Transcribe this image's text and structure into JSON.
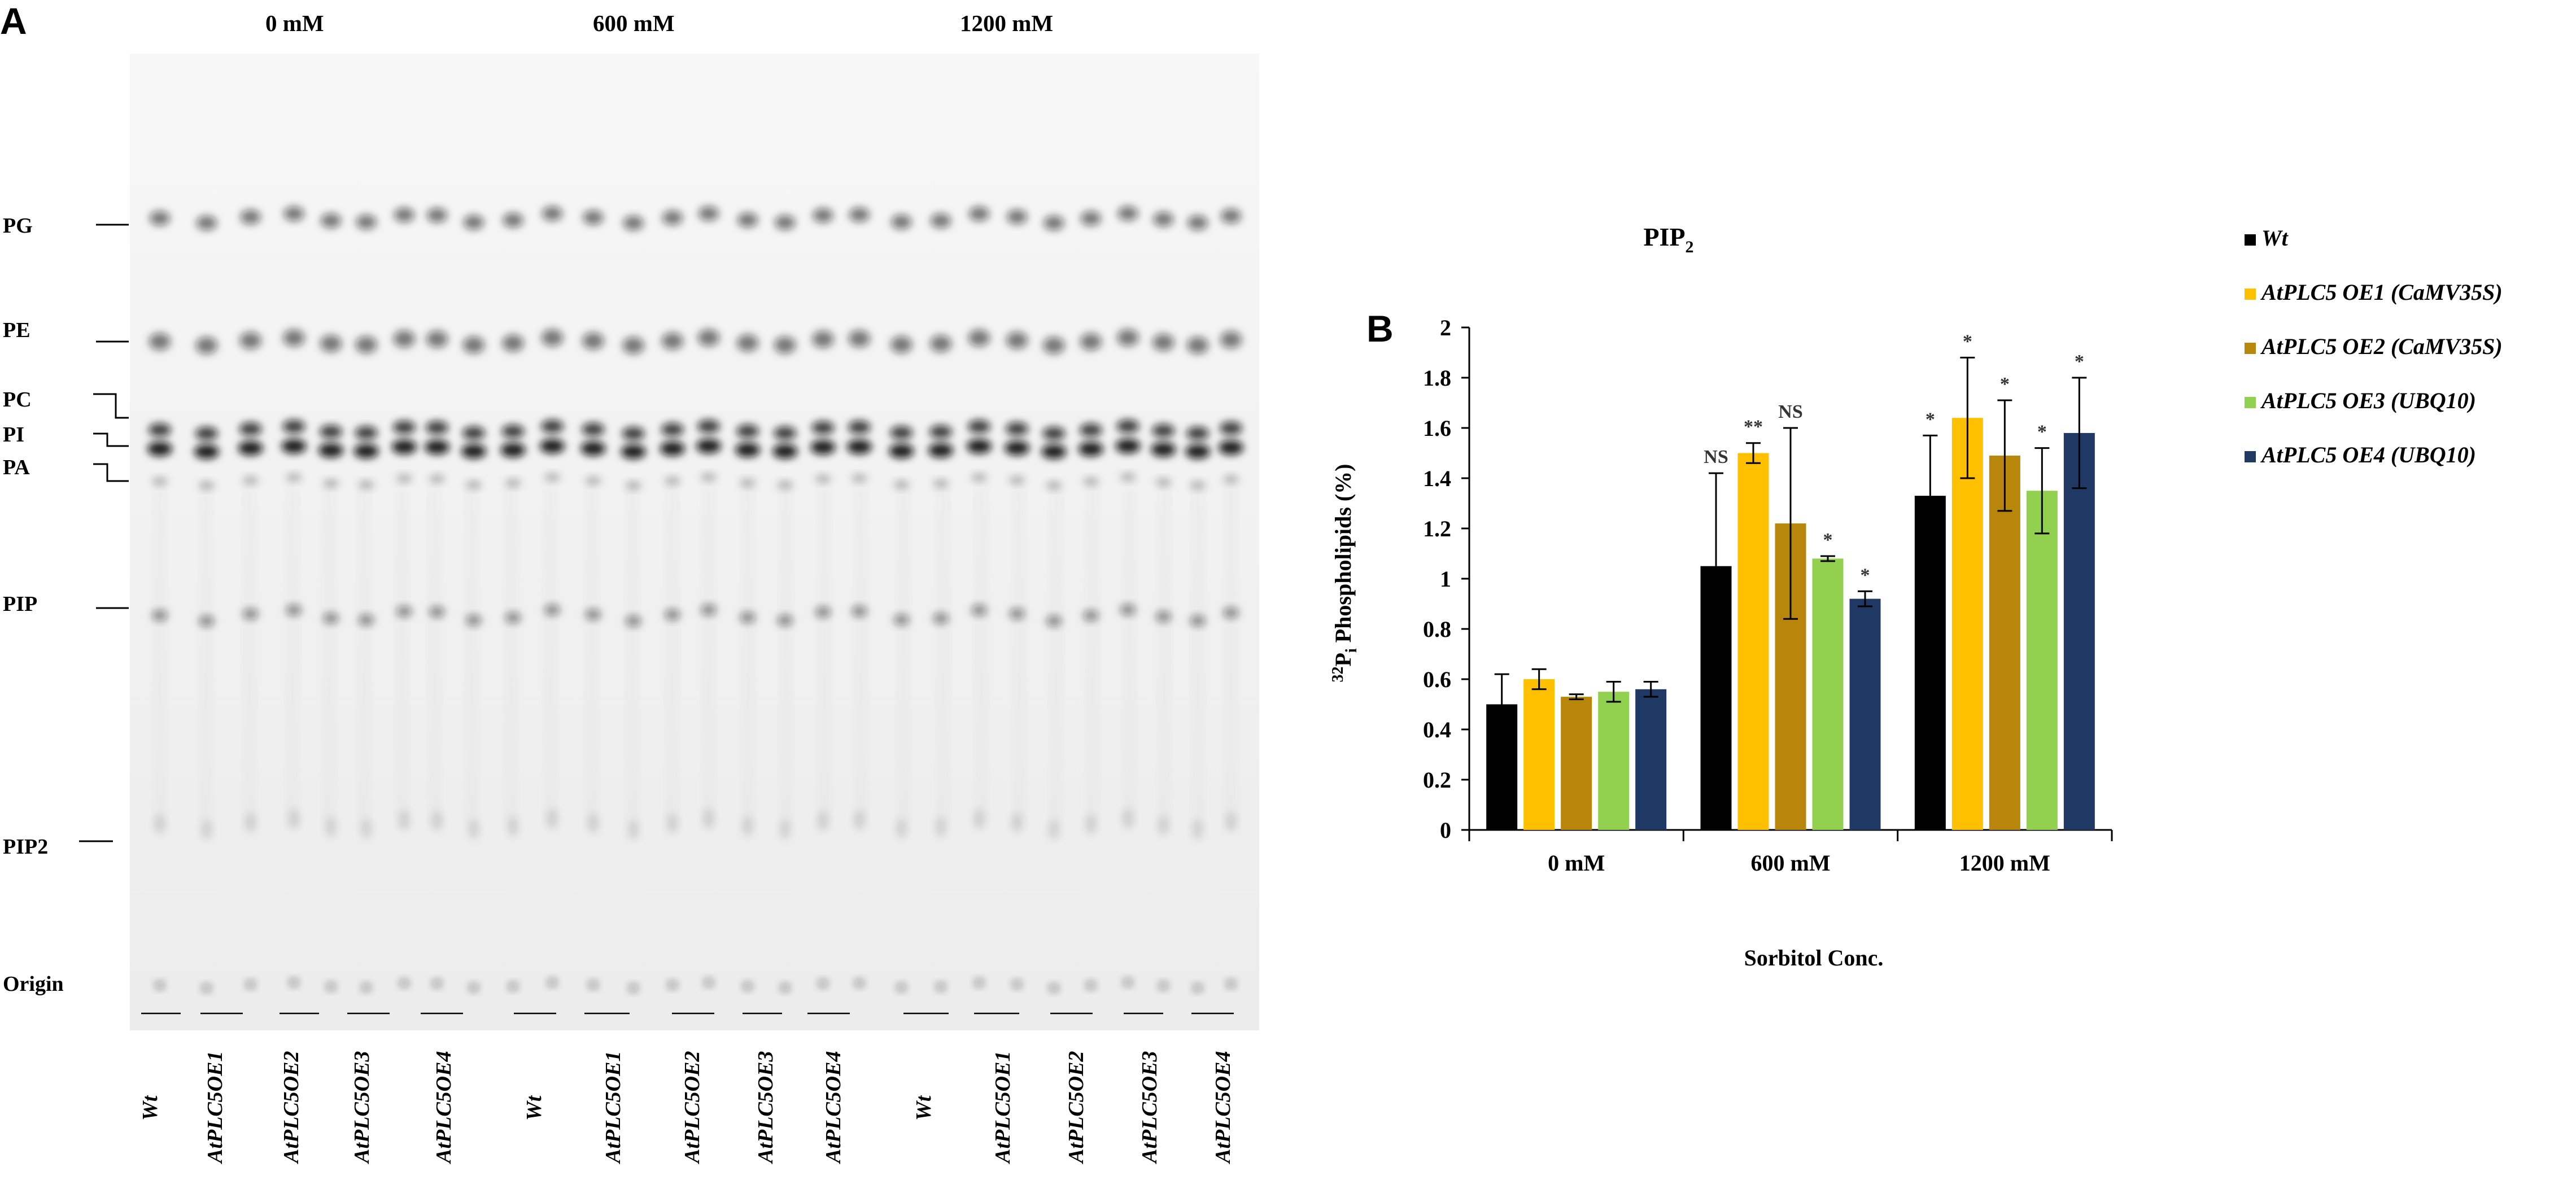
{
  "figure": {
    "panel_a_label": "A",
    "panel_b_label": "B"
  },
  "tlc": {
    "concentrations": [
      "0 mM",
      "600 mM",
      "1200 mM"
    ],
    "lipid_labels": [
      "PG",
      "PE",
      "PC",
      "PI",
      "PA",
      "PIP",
      "PIP2",
      "Origin"
    ],
    "lane_labels": [
      "Wt",
      "AtPLC5OE1",
      "AtPLC5OE2",
      "AtPLC5OE3",
      "AtPLC5OE4",
      "Wt",
      "AtPLC5OE1",
      "AtPLC5OE2",
      "AtPLC5OE3",
      "AtPLC5OE4",
      "Wt",
      "AtPLC5OE1",
      "AtPLC5OE2",
      "AtPLC5OE3",
      "AtPLC5OE4"
    ]
  },
  "chart_data": {
    "type": "bar",
    "title": "PIP",
    "title_subscript": "2",
    "ylabel_superscript": "32",
    "ylabel_main": "P",
    "ylabel_subscript": "i",
    "ylabel_rest": " Phospholipids (%)",
    "xlabel": "Sorbitol Conc.",
    "categories": [
      "0 mM",
      "600 mM",
      "1200 mM"
    ],
    "ylim": [
      0,
      2
    ],
    "yticks": [
      "0",
      "0.2",
      "0.4",
      "0.6",
      "0.8",
      "1",
      "1.2",
      "1.4",
      "1.6",
      "1.8",
      "2"
    ],
    "series": [
      {
        "name": "Wt",
        "color": "#000000",
        "values": [
          0.5,
          1.05,
          1.33
        ],
        "errors": [
          0.12,
          0.37,
          0.24
        ],
        "sig": [
          "",
          "NS",
          "*"
        ]
      },
      {
        "name": "AtPLC5 OE1 (CaMV35S)",
        "color": "#FFC000",
        "values": [
          0.6,
          1.5,
          1.64
        ],
        "errors": [
          0.04,
          0.04,
          0.24
        ],
        "sig": [
          "",
          "**",
          "*"
        ]
      },
      {
        "name": "AtPLC5 OE2 (CaMV35S)",
        "color": "#B8860B",
        "values": [
          0.53,
          1.22,
          1.49
        ],
        "errors": [
          0.01,
          0.38,
          0.22
        ],
        "sig": [
          "",
          "NS",
          "*"
        ]
      },
      {
        "name": "AtPLC5 OE3 (UBQ10)",
        "color": "#92D050",
        "values": [
          0.55,
          1.08,
          1.35
        ],
        "errors": [
          0.04,
          0.01,
          0.17
        ],
        "sig": [
          "",
          "*",
          "*"
        ]
      },
      {
        "name": "AtPLC5 OE4 (UBQ10)",
        "color": "#1F3864",
        "values": [
          0.56,
          0.92,
          1.58
        ],
        "errors": [
          0.03,
          0.03,
          0.22
        ],
        "sig": [
          "",
          "*",
          "*"
        ]
      }
    ]
  }
}
